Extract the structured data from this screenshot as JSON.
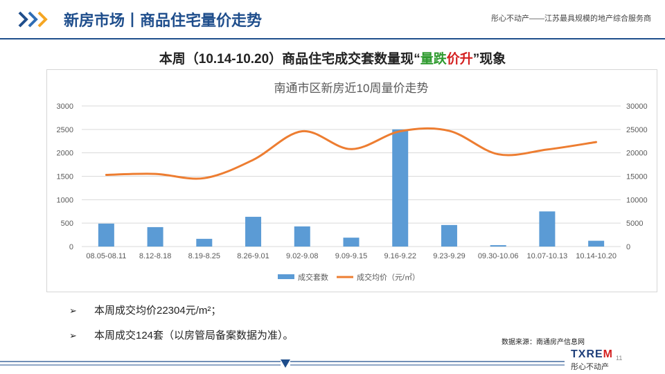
{
  "header": {
    "title": "新房市场丨商品住宅量价走势",
    "tagline": "彤心不动产——江苏最具规模的地产综合服务商"
  },
  "subtitle": {
    "before": "本周（10.14-10.20）商品住宅成交套数量现",
    "quote_open": "“",
    "highlight_green": "量跌",
    "highlight_red": "价升",
    "quote_close": "”",
    "after": "现象"
  },
  "chart_data": {
    "type": "bar+line",
    "title": "南通市区新房近10周量价走势",
    "categories": [
      "08.05-08.11",
      "8.12-8.18",
      "8.19-8.25",
      "8.26-9.01",
      "9.02-9.08",
      "9.09-9.15",
      "9.16-9.22",
      "9.23-9.29",
      "09.30-10.06",
      "10.07-10.13",
      "10.14-10.20"
    ],
    "series": [
      {
        "name": "成交套数",
        "type": "bar",
        "axis": "left",
        "color": "#5b9bd5",
        "values": [
          490,
          415,
          165,
          635,
          430,
          190,
          2500,
          460,
          30,
          750,
          124
        ]
      },
      {
        "name": "成交均价（元/㎡）",
        "type": "line",
        "axis": "right",
        "color": "#ed7d31",
        "values": [
          15300,
          15500,
          14600,
          18500,
          24600,
          20800,
          24600,
          24700,
          19700,
          20700,
          22304
        ]
      }
    ],
    "ylim_left": [
      0,
      3000
    ],
    "ylim_right": [
      0,
      30000
    ],
    "yticks_left": [
      "0",
      "500",
      "1000",
      "1500",
      "2000",
      "2500",
      "3000"
    ],
    "yticks_right": [
      "0",
      "5000",
      "10000",
      "15000",
      "20000",
      "25000",
      "30000"
    ],
    "grid": true,
    "legend_position": "bottom"
  },
  "bullets": [
    {
      "marker": "➢",
      "text": "本周成交均价22304元/m²；"
    },
    {
      "marker": "➢",
      "text": "本周成交124套（以房管局备案数据为准）。"
    }
  ],
  "source": "数据来源：南通房产信息网",
  "logo": {
    "text_main": "TXRE",
    "text_accent": "M",
    "sub": "彤心不动产"
  },
  "page_number": "11",
  "colors": {
    "brand_blue": "#1f4e8c",
    "accent_orange": "#f5a623",
    "bar_blue": "#5b9bd5",
    "line_orange": "#ed7d31"
  }
}
